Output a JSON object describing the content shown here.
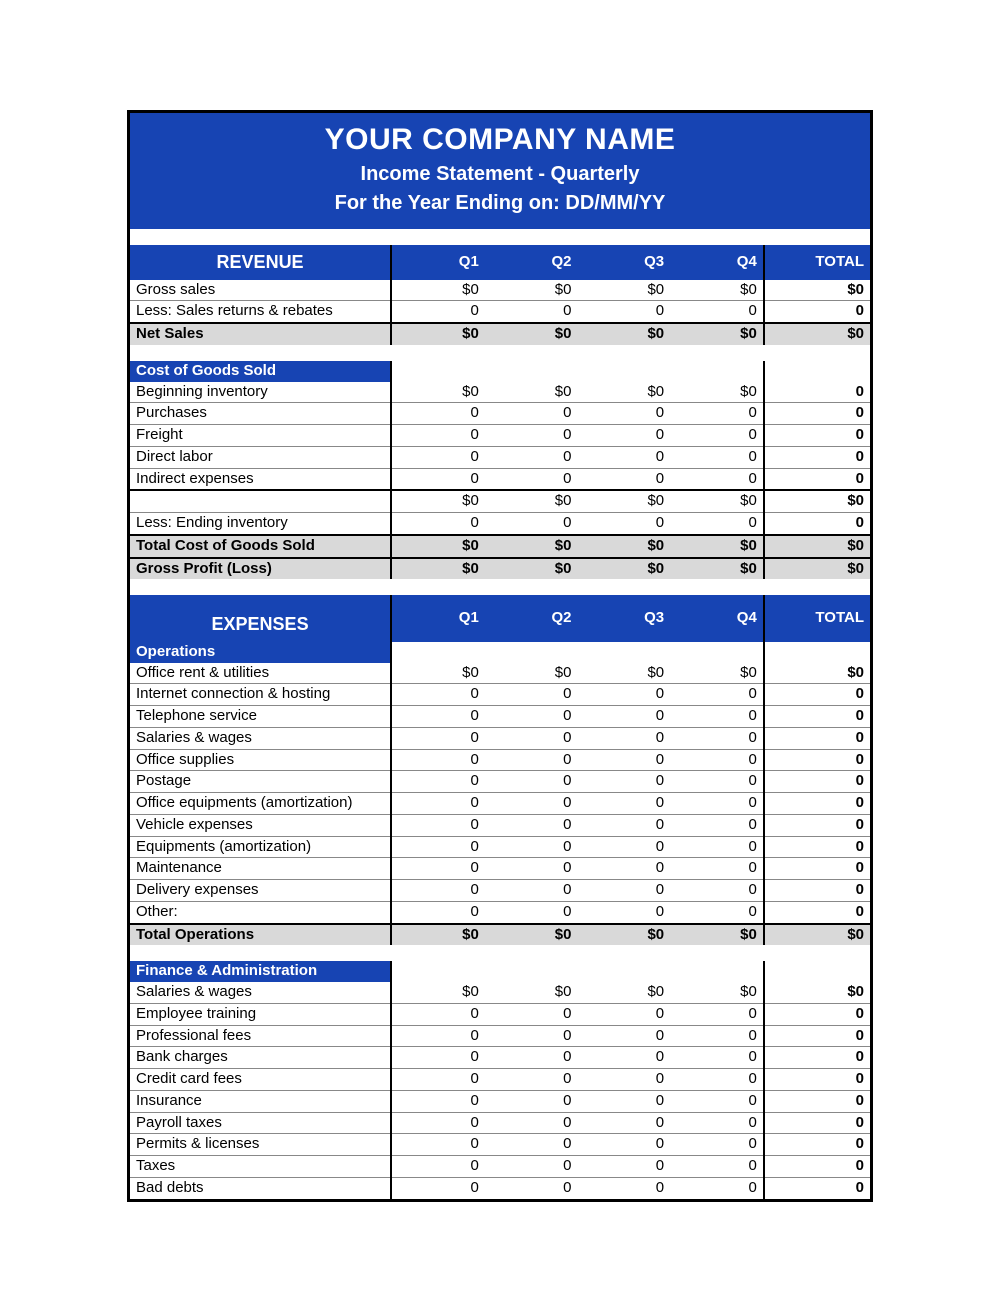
{
  "header": {
    "company": "YOUR COMPANY NAME",
    "subtitle1": "Income Statement - Quarterly",
    "subtitle2": "For the Year Ending on: DD/MM/YY"
  },
  "cols": {
    "q1": "Q1",
    "q2": "Q2",
    "q3": "Q3",
    "q4": "Q4",
    "total": "TOTAL"
  },
  "revenue": {
    "title": "REVENUE",
    "rows": [
      {
        "label": "Gross sales",
        "q1": "$0",
        "q2": "$0",
        "q3": "$0",
        "q4": "$0",
        "total": "$0"
      },
      {
        "label": "Less: Sales returns & rebates",
        "q1": "0",
        "q2": "0",
        "q3": "0",
        "q4": "0",
        "total": "0"
      }
    ],
    "net_sales": {
      "label": "Net Sales",
      "q1": "$0",
      "q2": "$0",
      "q3": "$0",
      "q4": "$0",
      "total": "$0"
    }
  },
  "cogs": {
    "title": "Cost of Goods Sold",
    "rows": [
      {
        "label": "Beginning inventory",
        "q1": "$0",
        "q2": "$0",
        "q3": "$0",
        "q4": "$0",
        "total": "0"
      },
      {
        "label": "Purchases",
        "q1": "0",
        "q2": "0",
        "q3": "0",
        "q4": "0",
        "total": "0"
      },
      {
        "label": "Freight",
        "q1": "0",
        "q2": "0",
        "q3": "0",
        "q4": "0",
        "total": "0"
      },
      {
        "label": "Direct labor",
        "q1": "0",
        "q2": "0",
        "q3": "0",
        "q4": "0",
        "total": "0"
      },
      {
        "label": "Indirect expenses",
        "q1": "0",
        "q2": "0",
        "q3": "0",
        "q4": "0",
        "total": "0"
      }
    ],
    "subtotal": {
      "label": "",
      "q1": "$0",
      "q2": "$0",
      "q3": "$0",
      "q4": "$0",
      "total": "$0"
    },
    "less_ending": {
      "label": "Less: Ending inventory",
      "q1": "0",
      "q2": "0",
      "q3": "0",
      "q4": "0",
      "total": "0"
    },
    "total": {
      "label": "Total Cost of Goods Sold",
      "q1": "$0",
      "q2": "$0",
      "q3": "$0",
      "q4": "$0",
      "total": "$0"
    },
    "gross_profit": {
      "label": "Gross Profit (Loss)",
      "q1": "$0",
      "q2": "$0",
      "q3": "$0",
      "q4": "$0",
      "total": "$0"
    }
  },
  "expenses": {
    "title": "EXPENSES",
    "operations": {
      "title": "Operations",
      "rows": [
        {
          "label": "Office rent & utilities",
          "q1": "$0",
          "q2": "$0",
          "q3": "$0",
          "q4": "$0",
          "total": "$0"
        },
        {
          "label": "Internet connection & hosting",
          "q1": "0",
          "q2": "0",
          "q3": "0",
          "q4": "0",
          "total": "0"
        },
        {
          "label": "Telephone service",
          "q1": "0",
          "q2": "0",
          "q3": "0",
          "q4": "0",
          "total": "0"
        },
        {
          "label": "Salaries & wages",
          "q1": "0",
          "q2": "0",
          "q3": "0",
          "q4": "0",
          "total": "0"
        },
        {
          "label": "Office supplies",
          "q1": "0",
          "q2": "0",
          "q3": "0",
          "q4": "0",
          "total": "0"
        },
        {
          "label": "Postage",
          "q1": "0",
          "q2": "0",
          "q3": "0",
          "q4": "0",
          "total": "0"
        },
        {
          "label": "Office equipments (amortization)",
          "q1": "0",
          "q2": "0",
          "q3": "0",
          "q4": "0",
          "total": "0"
        },
        {
          "label": "Vehicle expenses",
          "q1": "0",
          "q2": "0",
          "q3": "0",
          "q4": "0",
          "total": "0"
        },
        {
          "label": "Equipments (amortization)",
          "q1": "0",
          "q2": "0",
          "q3": "0",
          "q4": "0",
          "total": "0"
        },
        {
          "label": "Maintenance",
          "q1": "0",
          "q2": "0",
          "q3": "0",
          "q4": "0",
          "total": "0"
        },
        {
          "label": "Delivery expenses",
          "q1": "0",
          "q2": "0",
          "q3": "0",
          "q4": "0",
          "total": "0"
        },
        {
          "label": "Other:",
          "q1": "0",
          "q2": "0",
          "q3": "0",
          "q4": "0",
          "total": "0"
        }
      ],
      "total": {
        "label": "Total Operations",
        "q1": "$0",
        "q2": "$0",
        "q3": "$0",
        "q4": "$0",
        "total": "$0"
      }
    },
    "finance": {
      "title": "Finance & Administration",
      "rows": [
        {
          "label": "Salaries & wages",
          "q1": "$0",
          "q2": "$0",
          "q3": "$0",
          "q4": "$0",
          "total": "$0"
        },
        {
          "label": "Employee training",
          "q1": "0",
          "q2": "0",
          "q3": "0",
          "q4": "0",
          "total": "0"
        },
        {
          "label": "Professional fees",
          "q1": "0",
          "q2": "0",
          "q3": "0",
          "q4": "0",
          "total": "0"
        },
        {
          "label": "Bank charges",
          "q1": "0",
          "q2": "0",
          "q3": "0",
          "q4": "0",
          "total": "0"
        },
        {
          "label": "Credit card fees",
          "q1": "0",
          "q2": "0",
          "q3": "0",
          "q4": "0",
          "total": "0"
        },
        {
          "label": "Insurance",
          "q1": "0",
          "q2": "0",
          "q3": "0",
          "q4": "0",
          "total": "0"
        },
        {
          "label": "Payroll taxes",
          "q1": "0",
          "q2": "0",
          "q3": "0",
          "q4": "0",
          "total": "0"
        },
        {
          "label": "Permits & licenses",
          "q1": "0",
          "q2": "0",
          "q3": "0",
          "q4": "0",
          "total": "0"
        },
        {
          "label": "Taxes",
          "q1": "0",
          "q2": "0",
          "q3": "0",
          "q4": "0",
          "total": "0"
        },
        {
          "label": "Bad debts",
          "q1": "0",
          "q2": "0",
          "q3": "0",
          "q4": "0",
          "total": "0"
        }
      ]
    }
  }
}
